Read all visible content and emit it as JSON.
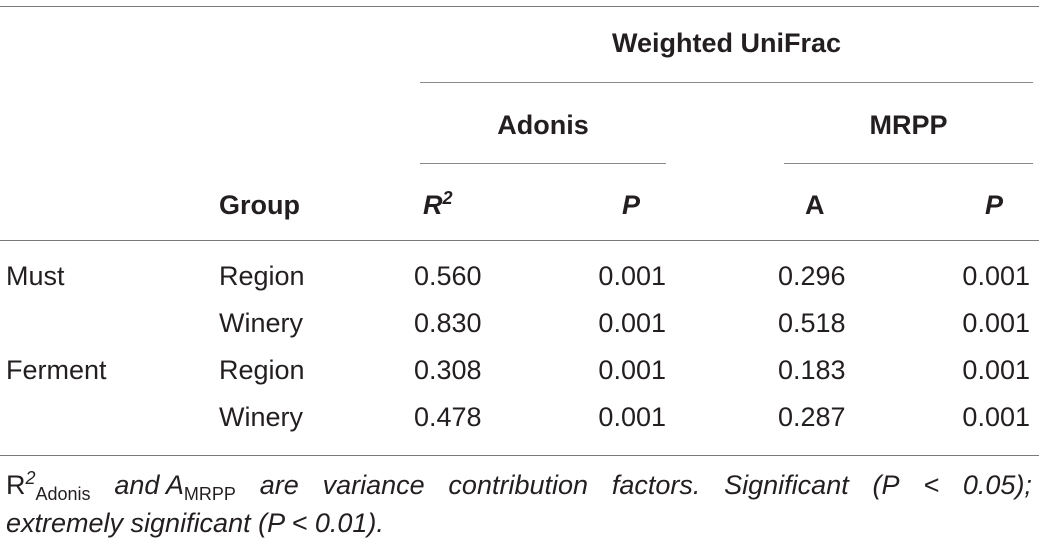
{
  "table": {
    "header": {
      "span_top": "Weighted UniFrac",
      "group_adonis": "Adonis",
      "group_mrpp": "MRPP",
      "col_group": "Group",
      "col_r_base": "R",
      "col_r_sup": "2",
      "col_p1": "P",
      "col_a": "A",
      "col_p2": "P"
    },
    "rows": [
      {
        "sample": "Must",
        "group": "Region",
        "r2": "0.560",
        "p1": "0.001",
        "a": "0.296",
        "p2": "0.001"
      },
      {
        "sample": "",
        "group": "Winery",
        "r2": "0.830",
        "p1": "0.001",
        "a": "0.518",
        "p2": "0.001"
      },
      {
        "sample": "Ferment",
        "group": "Region",
        "r2": "0.308",
        "p1": "0.001",
        "a": "0.183",
        "p2": "0.001"
      },
      {
        "sample": "",
        "group": "Winery",
        "r2": "0.478",
        "p1": "0.001",
        "a": "0.287",
        "p2": "0.001"
      }
    ]
  },
  "footnote": {
    "r_base": "R",
    "r_sup": "2",
    "r_sub": "Adonis",
    "and_a": "and A",
    "a_sub": "MRPP",
    "words": [
      "are",
      "variance",
      "contribution",
      "factors.",
      "Significant",
      "(P",
      "<",
      "0.05);"
    ],
    "line2": "extremely significant (P < 0.01)."
  }
}
